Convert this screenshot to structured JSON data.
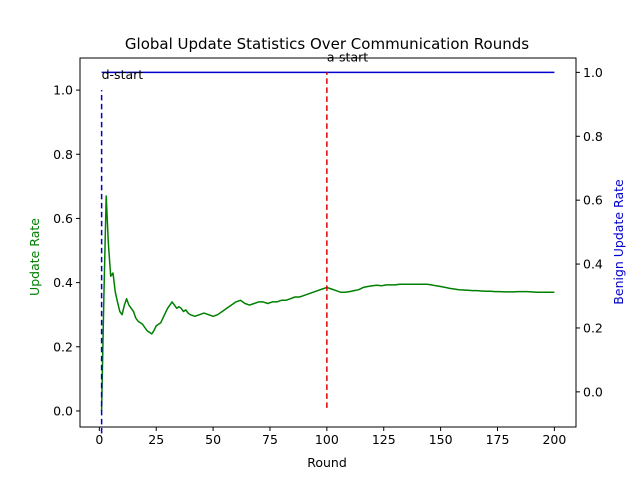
{
  "chart_data": {
    "type": "line",
    "title": "Global Update Statistics Over Communication Rounds",
    "xlabel": "Round",
    "ylabel": "Update Rate",
    "y2label": "Benign Update Rate",
    "xlim": [
      -8.5,
      209.5
    ],
    "ylim": [
      -0.05,
      1.1
    ],
    "y2lim": [
      -0.11,
      1.045
    ],
    "xticks": [
      0,
      25,
      50,
      75,
      100,
      125,
      150,
      175,
      200
    ],
    "yticks": [
      0.0,
      0.2,
      0.4,
      0.6,
      0.8,
      1.0
    ],
    "y2ticks": [
      0.0,
      0.2,
      0.4,
      0.6,
      0.8,
      1.0
    ],
    "ytick_labels": [
      "0.0",
      "0.2",
      "0.4",
      "0.6",
      "0.8",
      "1.0"
    ],
    "y2tick_labels": [
      "0.0",
      "0.2",
      "0.4",
      "0.6",
      "0.8",
      "1.0"
    ],
    "grid": false,
    "colors": {
      "update_rate": "#008000",
      "benign_update_rate": "#0000cc",
      "d_start": "#0000cc",
      "a_start": "#dd0000"
    },
    "series": [
      {
        "axis": "left",
        "color": "#008000",
        "x": [
          1,
          2,
          3,
          4,
          5,
          6,
          7,
          8,
          9,
          10,
          11,
          12,
          13,
          14,
          15,
          16,
          17,
          18,
          19,
          20,
          21,
          22,
          23,
          24,
          25,
          26,
          27,
          28,
          29,
          30,
          31,
          32,
          33,
          34,
          35,
          36,
          37,
          38,
          39,
          40,
          42,
          44,
          46,
          48,
          50,
          52,
          54,
          56,
          58,
          60,
          62,
          64,
          66,
          68,
          70,
          72,
          74,
          76,
          78,
          80,
          82,
          84,
          86,
          88,
          90,
          92,
          94,
          96,
          98,
          100,
          102,
          104,
          106,
          108,
          110,
          112,
          114,
          116,
          118,
          120,
          122,
          124,
          126,
          128,
          130,
          132,
          134,
          136,
          138,
          140,
          142,
          144,
          146,
          148,
          150,
          152,
          154,
          156,
          158,
          160,
          162,
          164,
          166,
          168,
          170,
          172,
          174,
          176,
          178,
          180,
          182,
          184,
          186,
          188,
          190,
          192,
          194,
          196,
          198,
          200
        ],
        "y": [
          0.0,
          0.36,
          0.67,
          0.52,
          0.42,
          0.43,
          0.37,
          0.34,
          0.31,
          0.3,
          0.33,
          0.35,
          0.33,
          0.32,
          0.31,
          0.29,
          0.28,
          0.275,
          0.27,
          0.26,
          0.25,
          0.245,
          0.24,
          0.25,
          0.265,
          0.27,
          0.275,
          0.29,
          0.305,
          0.32,
          0.33,
          0.34,
          0.33,
          0.32,
          0.325,
          0.32,
          0.31,
          0.315,
          0.305,
          0.3,
          0.295,
          0.3,
          0.305,
          0.3,
          0.295,
          0.3,
          0.31,
          0.32,
          0.33,
          0.34,
          0.345,
          0.335,
          0.33,
          0.335,
          0.34,
          0.34,
          0.335,
          0.34,
          0.34,
          0.345,
          0.345,
          0.35,
          0.355,
          0.355,
          0.36,
          0.365,
          0.37,
          0.375,
          0.38,
          0.385,
          0.38,
          0.375,
          0.37,
          0.37,
          0.372,
          0.375,
          0.378,
          0.385,
          0.388,
          0.39,
          0.392,
          0.39,
          0.393,
          0.393,
          0.393,
          0.395,
          0.395,
          0.395,
          0.395,
          0.395,
          0.395,
          0.395,
          0.393,
          0.39,
          0.388,
          0.385,
          0.382,
          0.38,
          0.378,
          0.377,
          0.376,
          0.375,
          0.375,
          0.374,
          0.373,
          0.373,
          0.372,
          0.372,
          0.371,
          0.371,
          0.371,
          0.372,
          0.372,
          0.372,
          0.371,
          0.37,
          0.37,
          0.37,
          0.37,
          0.37
        ]
      },
      {
        "axis": "right",
        "color": "#0000cc",
        "x": [
          1,
          200
        ],
        "y": [
          1.0,
          1.0
        ]
      }
    ],
    "vlines": [
      {
        "x": 1,
        "label": "d-start",
        "color": "#0000cc",
        "axis": "left",
        "y_from": -0.07,
        "y_to": 1.0
      },
      {
        "x": 100,
        "label": "a-start",
        "color": "#dd0000",
        "axis": "right",
        "y_from": -0.05,
        "y_to": 1.0
      }
    ]
  }
}
